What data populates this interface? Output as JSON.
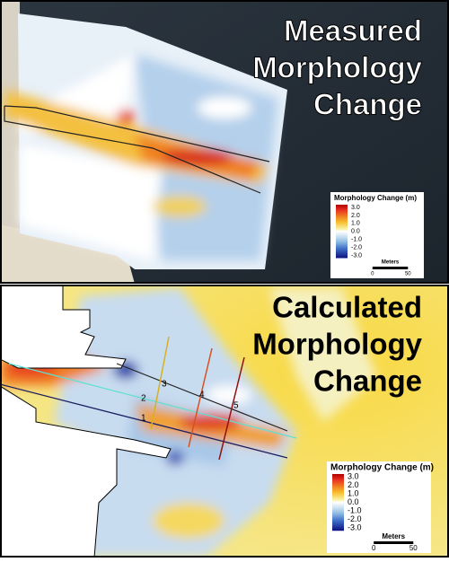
{
  "panels": [
    {
      "title_lines": [
        "Measured",
        "Morphology",
        "Change"
      ],
      "legend": {
        "title": "Morphology Change (m)",
        "labels": [
          "3.0",
          "2.0",
          "1.0",
          "0.0",
          "-1.0",
          "-2.0",
          "-3.0"
        ],
        "scale": {
          "title": "Meters",
          "labels": [
            "0",
            "50"
          ]
        }
      }
    },
    {
      "title_lines": [
        "Calculated",
        "Morphology",
        "Change"
      ],
      "legend": {
        "title": "Morphology Change (m)",
        "labels": [
          "3.0",
          "2.0",
          "1.0",
          "0.0",
          "-1.0",
          "-2.0",
          "-3.0"
        ],
        "scale": {
          "title": "Meters",
          "labels": [
            "0",
            "50"
          ]
        }
      },
      "transects": [
        "1",
        "2",
        "3",
        "4",
        "5"
      ]
    }
  ]
}
